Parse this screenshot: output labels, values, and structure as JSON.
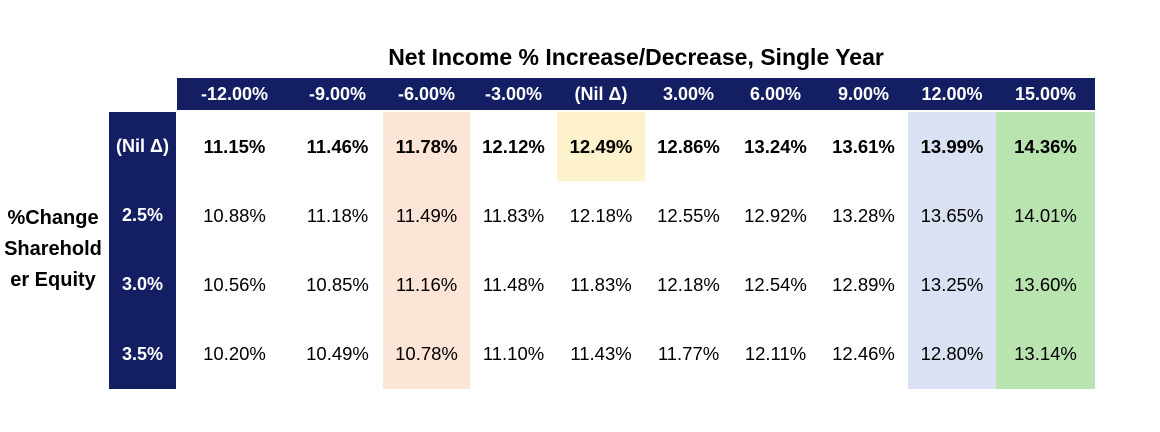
{
  "chart_data": {
    "type": "table",
    "title": "Net Income % Increase/Decrease, Single Year",
    "col_axis_label": "Net Income % Increase/Decrease, Single Year",
    "row_axis_label": "%Change Shareholder Equity",
    "row_axis_label_lines": [
      "%Change",
      "Sharehold",
      "er Equity"
    ],
    "col_headers": [
      "-12.00%",
      "-9.00%",
      "-6.00%",
      "-3.00%",
      "(Nil Δ)",
      "3.00%",
      "6.00%",
      "9.00%",
      "12.00%",
      "15.00%"
    ],
    "rows": [
      {
        "label": "(Nil Δ)",
        "values": [
          "11.15%",
          "11.46%",
          "11.78%",
          "12.12%",
          "12.49%",
          "12.86%",
          "13.24%",
          "13.61%",
          "13.99%",
          "14.36%"
        ]
      },
      {
        "label": "2.5%",
        "values": [
          "10.88%",
          "11.18%",
          "11.49%",
          "11.83%",
          "12.18%",
          "12.55%",
          "12.92%",
          "13.28%",
          "13.65%",
          "14.01%"
        ]
      },
      {
        "label": "3.0%",
        "values": [
          "10.56%",
          "10.85%",
          "11.16%",
          "11.48%",
          "11.83%",
          "12.18%",
          "12.54%",
          "12.89%",
          "13.25%",
          "13.60%"
        ]
      },
      {
        "label": "3.5%",
        "values": [
          "10.20%",
          "10.49%",
          "10.78%",
          "11.10%",
          "11.43%",
          "11.77%",
          "12.11%",
          "12.46%",
          "12.80%",
          "13.14%"
        ]
      }
    ],
    "highlights": {
      "column_-6.00%": "peach full column",
      "cell_nil_delta_row_nil_delta_col": "yellow single cell",
      "column_12.00%": "light blue full column",
      "column_15.00%": "light green full column"
    },
    "layout": {
      "grid": "off",
      "header_style": "dark navy band",
      "first_data_row_bold": true
    }
  },
  "colors": {
    "navy": "#141f63",
    "peach": "#fce4d6",
    "yellow": "#fdf2cc",
    "blue": "#d9e1f2",
    "green": "#b9e3af"
  }
}
